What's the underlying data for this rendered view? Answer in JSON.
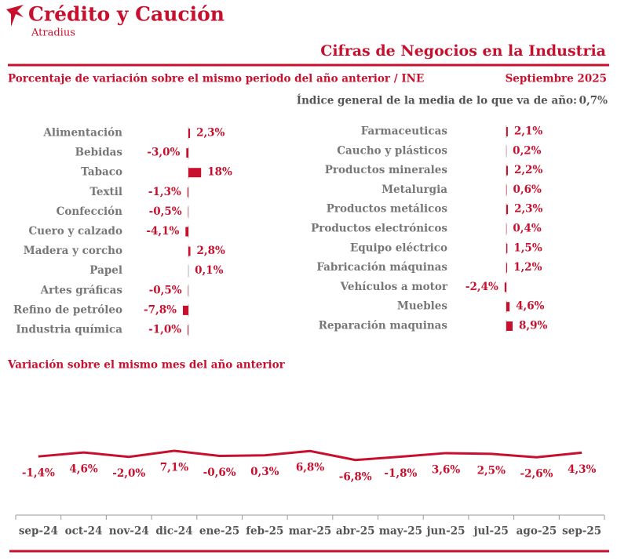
{
  "header": {
    "brand": "Crédito y Caución",
    "brand_sub": "Atradius",
    "title": "Cifras de Negocios en la Industria",
    "subtitle": "Porcentaje de variación sobre el mismo periodo del año anterior / INE",
    "date": "Septiembre 2025",
    "index_label": "Índice general de la media de lo que va de año:",
    "index_value": "0,7%"
  },
  "chart_data": [
    {
      "type": "barh",
      "color": "#c8102e",
      "xlim": [
        -50,
        50
      ],
      "categories": [
        "Alimentación",
        "Bebidas",
        "Tabaco",
        "Textil",
        "Confección",
        "Cuero y calzado",
        "Madera y corcho",
        "Papel",
        "Artes gráficas",
        "Refino de petróleo",
        "Industria química"
      ],
      "values": [
        2.3,
        -3.0,
        18,
        -1.3,
        -0.5,
        -4.1,
        2.8,
        0.1,
        -0.5,
        -7.8,
        -1.0
      ],
      "value_labels": [
        "2,3%",
        "-3,0%",
        "18%",
        "-1,3%",
        "-0,5%",
        "-4,1%",
        "2,8%",
        "0,1%",
        "-0,5%",
        "-7,8%",
        "-1,0%"
      ]
    },
    {
      "type": "barh",
      "color": "#c8102e",
      "xlim": [
        -50,
        50
      ],
      "categories": [
        "Farmaceuticas",
        "Caucho y plásticos",
        "Productos minerales",
        "Metalurgia",
        "Productos metálicos",
        "Productos electrónicos",
        "Equipo eléctrico",
        "Fabricación máquinas",
        "Vehículos a motor",
        "Muebles",
        "Reparación maquinas"
      ],
      "values": [
        2.1,
        0.2,
        2.2,
        0.6,
        2.3,
        0.4,
        1.5,
        1.2,
        -2.4,
        4.6,
        8.9
      ],
      "value_labels": [
        "2,1%",
        "0,2%",
        "2,2%",
        "0,6%",
        "2,3%",
        "0,4%",
        "1,5%",
        "1,2%",
        "-2,4%",
        "4,6%",
        "8,9%"
      ]
    },
    {
      "type": "line",
      "title": "Variación sobre el mismo mes del año anterior",
      "color": "#c8102e",
      "ylim": [
        -100,
        100
      ],
      "categories": [
        "sep-24",
        "oct-24",
        "nov-24",
        "dic-24",
        "ene-25",
        "feb-25",
        "mar-25",
        "abr-25",
        "may-25",
        "jun-25",
        "jul-25",
        "ago-25",
        "sep-25"
      ],
      "values": [
        -1.4,
        4.6,
        -2.0,
        7.1,
        -0.6,
        0.3,
        6.8,
        -6.8,
        -1.8,
        3.6,
        2.5,
        -2.6,
        4.3
      ],
      "value_labels": [
        "-1,4%",
        "4,6%",
        "-2,0%",
        "7,1%",
        "-0,6%",
        "0,3%",
        "6,8%",
        "-6,8%",
        "-1,8%",
        "3,6%",
        "2,5%",
        "-2,6%",
        "4,3%"
      ]
    }
  ]
}
